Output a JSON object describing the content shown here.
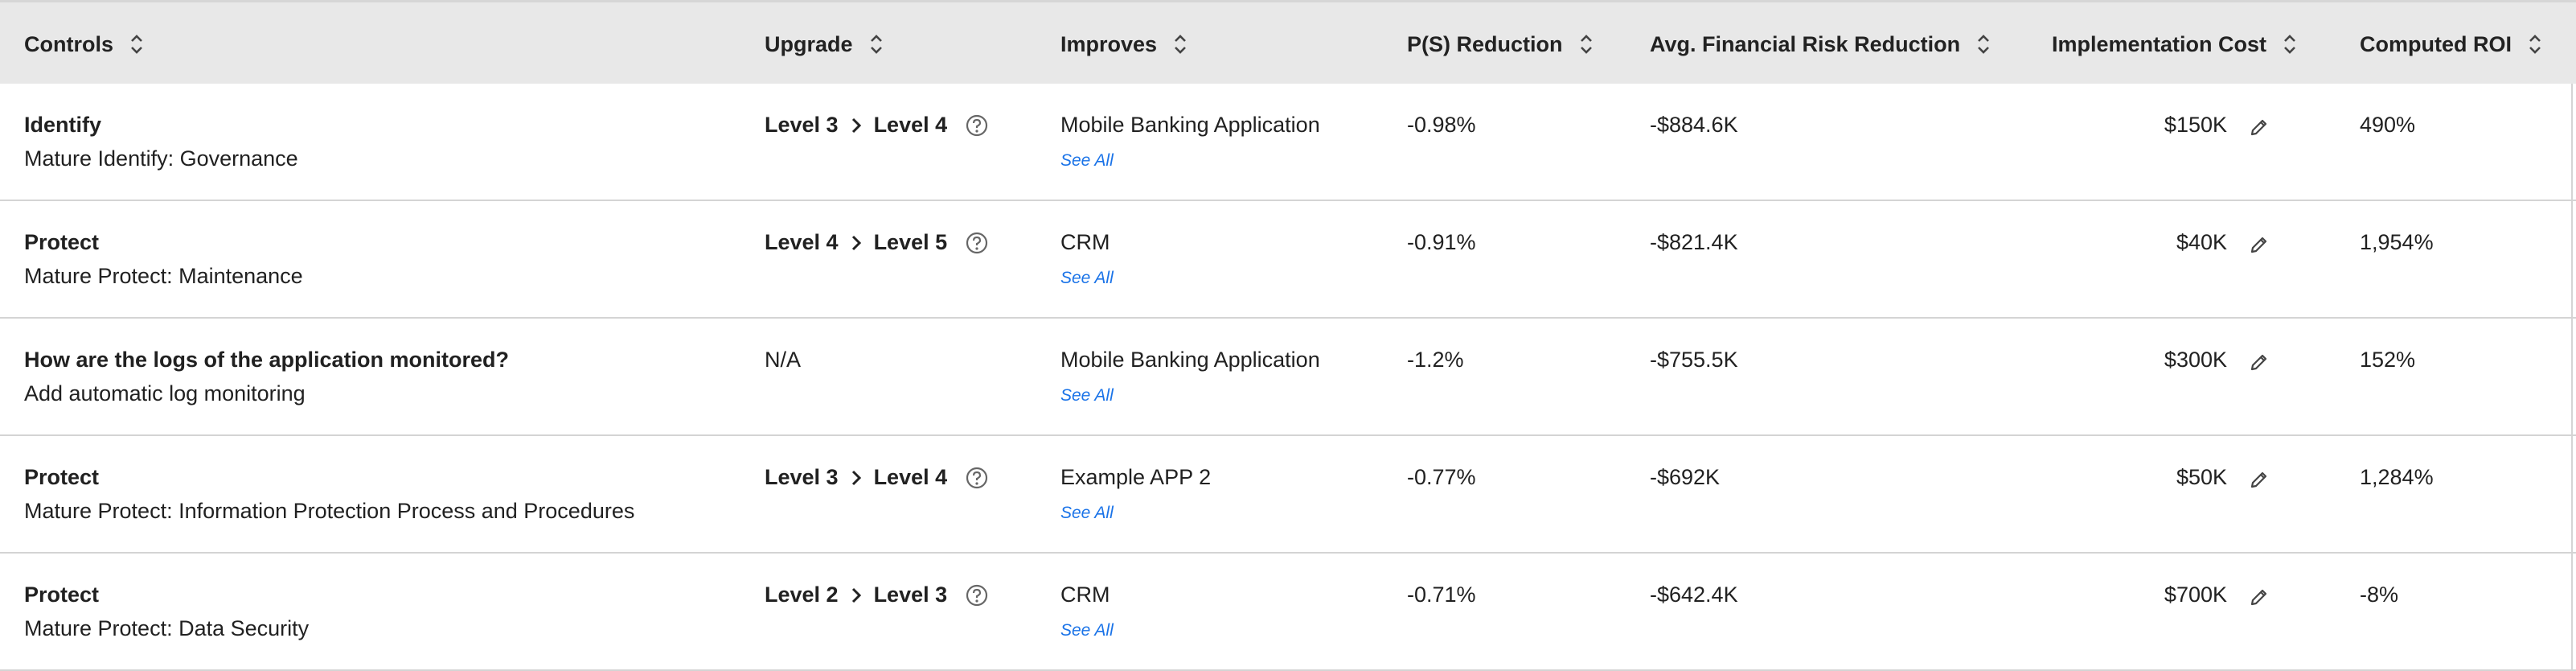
{
  "columns": [
    {
      "label": "Controls"
    },
    {
      "label": "Upgrade"
    },
    {
      "label": "Improves"
    },
    {
      "label": "P(S) Reduction"
    },
    {
      "label": "Avg. Financial Risk Reduction"
    },
    {
      "label": "Implementation Cost"
    },
    {
      "label": "Computed ROI"
    }
  ],
  "rows": [
    {
      "title": "Identify",
      "subtitle": "Mature Identify: Governance",
      "from": "Level 3",
      "to": "Level 4",
      "na": "",
      "improves": "Mobile Banking Application",
      "see_all": "See All",
      "ps_reduction": "-0.98%",
      "fin_reduction": "-$884.6K",
      "cost": "$150K",
      "roi": "490%"
    },
    {
      "title": "Protect",
      "subtitle": "Mature Protect: Maintenance",
      "from": "Level 4",
      "to": "Level 5",
      "na": "",
      "improves": "CRM",
      "see_all": "See All",
      "ps_reduction": "-0.91%",
      "fin_reduction": "-$821.4K",
      "cost": "$40K",
      "roi": "1,954%"
    },
    {
      "title": "How are the logs of the application monitored?",
      "subtitle": "Add automatic log monitoring",
      "from": "",
      "to": "",
      "na": "N/A",
      "improves": "Mobile Banking Application",
      "see_all": "See All",
      "ps_reduction": "-1.2%",
      "fin_reduction": "-$755.5K",
      "cost": "$300K",
      "roi": "152%"
    },
    {
      "title": "Protect",
      "subtitle": "Mature Protect: Information Protection Process and Procedures",
      "from": "Level 3",
      "to": "Level 4",
      "na": "",
      "improves": "Example APP 2",
      "see_all": "See All",
      "ps_reduction": "-0.77%",
      "fin_reduction": "-$692K",
      "cost": "$50K",
      "roi": "1,284%"
    },
    {
      "title": "Protect",
      "subtitle": "Mature Protect: Data Security",
      "from": "Level 2",
      "to": "Level 3",
      "na": "",
      "improves": "CRM",
      "see_all": "See All",
      "ps_reduction": "-0.71%",
      "fin_reduction": "-$642.4K",
      "cost": "$700K",
      "roi": "-8%"
    }
  ],
  "icons": {
    "sort": "sort-icon",
    "chevron": "chevron-right-icon",
    "help": "help-circle-icon",
    "edit": "pencil-icon"
  },
  "colors": {
    "header_bg": "#e8e8e8",
    "link": "#1a73e8",
    "divider": "#d4d4d4"
  }
}
